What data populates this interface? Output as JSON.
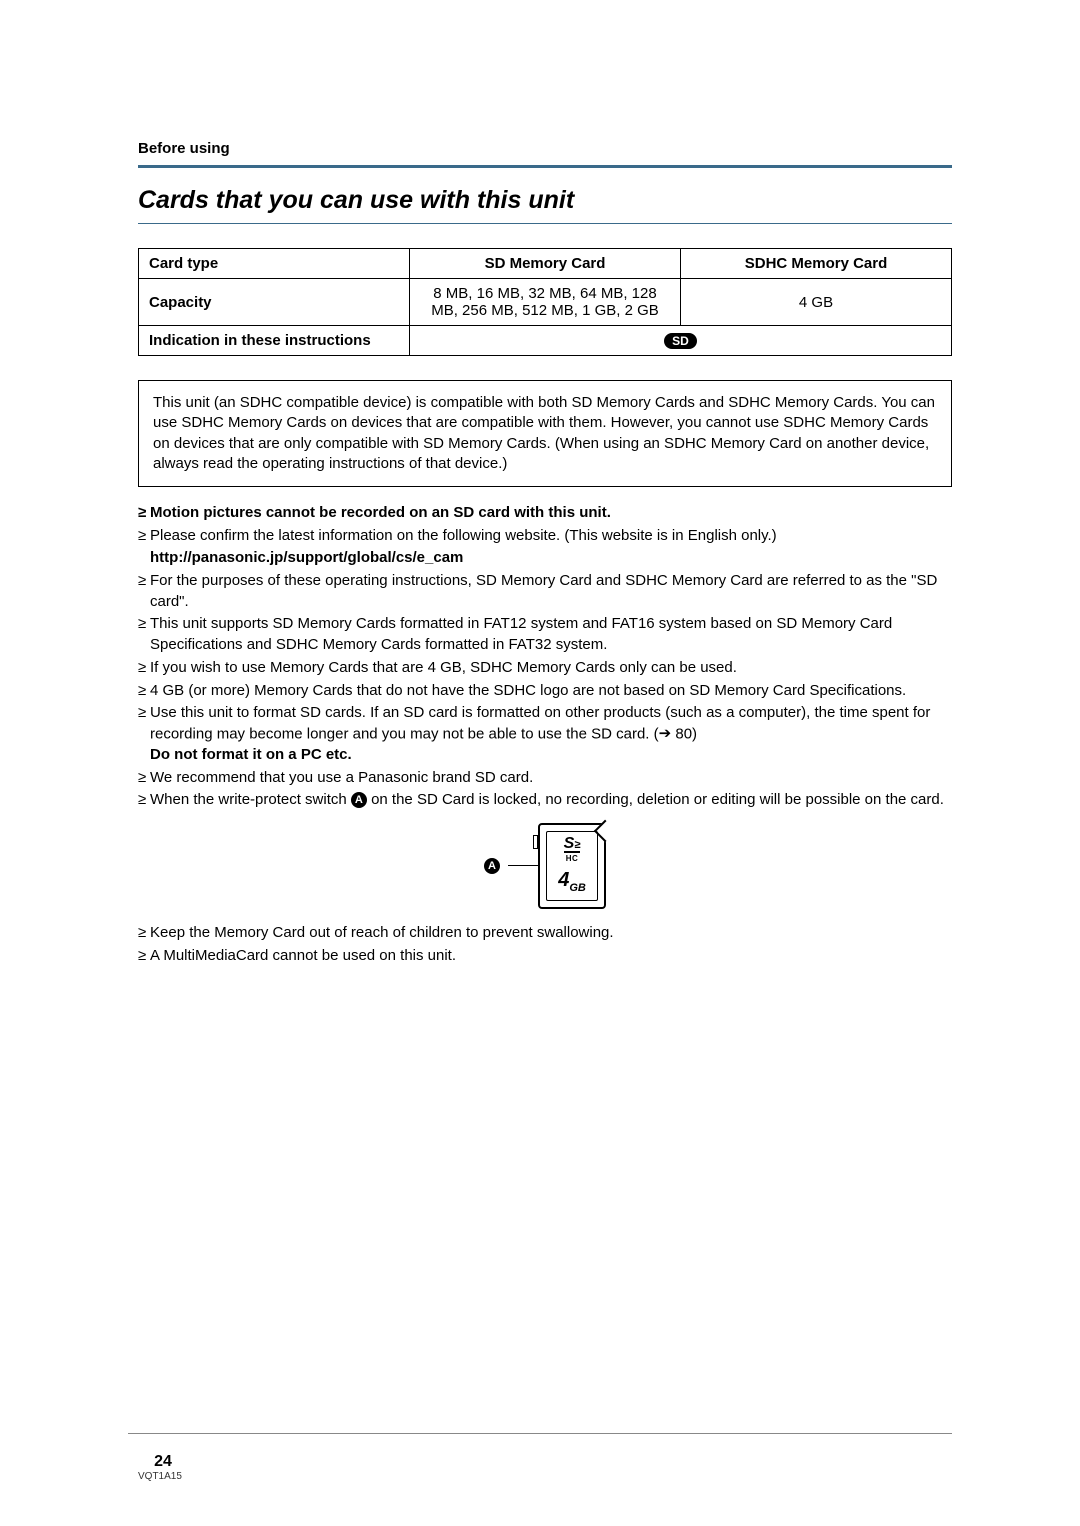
{
  "section_label": "Before using",
  "title": "Cards that you can use with this unit",
  "table": {
    "header": {
      "c1": "Card type",
      "c2": "SD Memory Card",
      "c3": "SDHC Memory Card"
    },
    "row_capacity": {
      "label": "Capacity",
      "sd": "8 MB, 16 MB, 32 MB, 64 MB, 128 MB, 256 MB, 512 MB, 1 GB, 2 GB",
      "sdhc": "4 GB"
    },
    "row_indication": {
      "label": "Indication in these instructions",
      "badge": "SD"
    }
  },
  "info_box": "This unit (an SDHC compatible device) is compatible with both SD Memory Cards and SDHC Memory Cards. You can use SDHC Memory Cards on devices that are compatible with them. However, you cannot use SDHC Memory Cards on devices that are only compatible with SD Memory Cards. (When using an SDHC Memory Card on another device, always read the operating instructions of that device.)",
  "bullets_top": [
    {
      "bold": true,
      "text": "Motion pictures cannot be recorded on an SD card with this unit."
    },
    {
      "text": "Please confirm the latest information on the following website. (This website is in English only.)"
    },
    {
      "bold": true,
      "no_bullet": true,
      "text": "http://panasonic.jp/support/global/cs/e_cam"
    },
    {
      "text": "For the purposes of these operating instructions, SD Memory Card and SDHC Memory Card are referred to as the \"SD card\"."
    },
    {
      "text": "This unit supports SD Memory Cards formatted in FAT12 system and FAT16 system based on SD Memory Card Specifications and SDHC Memory Cards formatted in FAT32 system."
    },
    {
      "text": "If you wish to use Memory Cards that are 4 GB, SDHC Memory Cards only can be used."
    },
    {
      "text": "4 GB (or more) Memory Cards that do not have the SDHC logo are not based on SD Memory Card Specifications."
    }
  ],
  "format_bullet": {
    "prefix": "Use this unit to format SD cards. If an SD card is formatted on other products (such as a computer), the time spent for recording may become longer and you may not be able to use the SD card. (",
    "page_ref": " 80)",
    "suffix_bold": "Do not format it on a PC etc."
  },
  "bullets_mid": [
    {
      "text": "We recommend that you use a Panasonic brand SD card."
    }
  ],
  "write_protect": {
    "prefix": "When the write-protect switch ",
    "label": "A",
    "suffix": " on the SD Card is locked, no recording, deletion or editing will be possible on the card."
  },
  "diagram": {
    "label": "A",
    "logo_top": "S",
    "logo_sub": "HC",
    "capacity_num": "4",
    "capacity_unit": "GB"
  },
  "bullets_bottom": [
    {
      "text": "Keep the Memory Card out of reach of children to prevent swallowing."
    },
    {
      "text": "A MultiMediaCard cannot be used on this unit."
    }
  ],
  "footer": {
    "page": "24",
    "code": "VQT1A15"
  }
}
